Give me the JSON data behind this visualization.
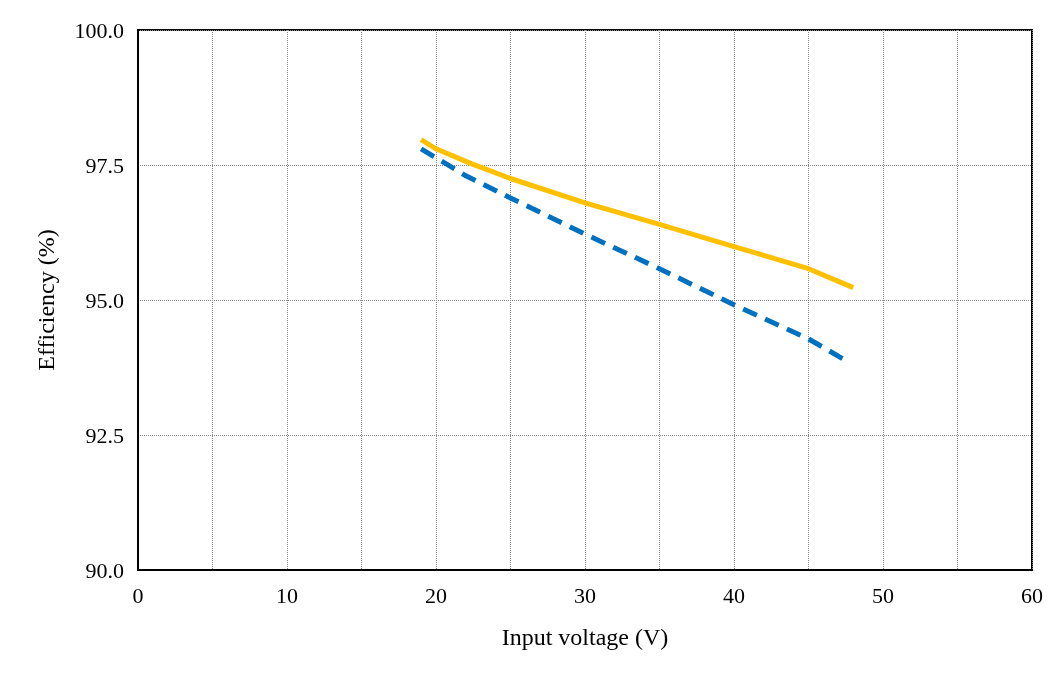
{
  "chart_data": {
    "type": "line",
    "xlabel": "Input voltage (V)",
    "ylabel": "Efficiency (%)",
    "xlim": [
      0,
      60
    ],
    "xticks": [
      0,
      {
        "value": 5,
        "label": null
      },
      10,
      {
        "value": 15,
        "label": null
      },
      20,
      {
        "value": 25,
        "label": null
      },
      30,
      {
        "value": 35,
        "label": null
      },
      40,
      {
        "value": 45,
        "label": null
      },
      50,
      {
        "value": 55,
        "label": null
      },
      60
    ],
    "ylim": [
      90,
      100
    ],
    "yticks": [
      {
        "value": 90,
        "label": "90.0"
      },
      {
        "value": 92.5,
        "label": "92.5"
      },
      {
        "value": 95,
        "label": "95.0"
      },
      {
        "value": 97.5,
        "label": "97.5"
      },
      {
        "value": 100,
        "label": "100.0"
      }
    ],
    "grid": true,
    "marker": "none",
    "series": [
      {
        "color": "#ffc000",
        "line_style": "solid",
        "x": [
          19,
          20,
          22.4,
          25,
          30,
          35,
          40,
          45,
          48
        ],
        "values": [
          97.97,
          97.8,
          97.52,
          97.25,
          96.8,
          96.4,
          95.99,
          95.58,
          95.23
        ]
      },
      {
        "color": "#0070c0",
        "line_style": "dashed",
        "x": [
          19,
          22,
          25,
          30,
          35,
          40,
          45,
          47.5
        ],
        "values": [
          97.8,
          97.3,
          96.89,
          96.22,
          95.58,
          94.91,
          94.28,
          93.88
        ]
      }
    ]
  }
}
